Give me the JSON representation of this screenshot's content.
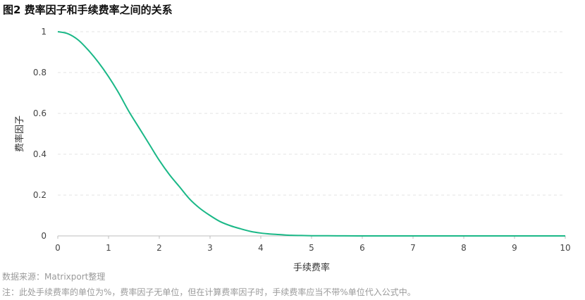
{
  "title": "图2 费率因子和手续费率之间的关系",
  "source": "数据来源：Matrixport整理",
  "note": "注：此处手续费率的单位为%，费率因子无单位，但在计算费率因子时，手续费率应当不带%单位代入公式中。",
  "chart_data": {
    "type": "line",
    "title": "图2 费率因子和手续费率之间的关系",
    "xlabel": "手续费率",
    "ylabel": "费率因子",
    "xlim": [
      0,
      10
    ],
    "ylim": [
      0,
      1
    ],
    "x_ticks": [
      0,
      1,
      2,
      3,
      4,
      5,
      6,
      7,
      8,
      9,
      10
    ],
    "y_ticks": [
      0,
      0.2,
      0.4,
      0.6,
      0.8,
      1
    ],
    "grid": true,
    "legend": "none",
    "series": [
      {
        "color": "#1ab887",
        "x": [
          0,
          0.2,
          0.4,
          0.6,
          0.8,
          1.0,
          1.2,
          1.4,
          1.6,
          1.8,
          2.0,
          2.2,
          2.4,
          2.6,
          2.8,
          3.0,
          3.2,
          3.4,
          3.6,
          3.8,
          4.0,
          4.2,
          4.4,
          4.6,
          4.8,
          5.0,
          5.5,
          6,
          7,
          8,
          9,
          10
        ],
        "values": [
          1.0,
          0.99,
          0.96,
          0.91,
          0.85,
          0.78,
          0.7,
          0.61,
          0.53,
          0.45,
          0.37,
          0.3,
          0.24,
          0.18,
          0.135,
          0.1,
          0.07,
          0.05,
          0.035,
          0.022,
          0.014,
          0.009,
          0.006,
          0.003,
          0.002,
          0.001,
          0.0005,
          0,
          0,
          0,
          0,
          0
        ]
      }
    ]
  }
}
